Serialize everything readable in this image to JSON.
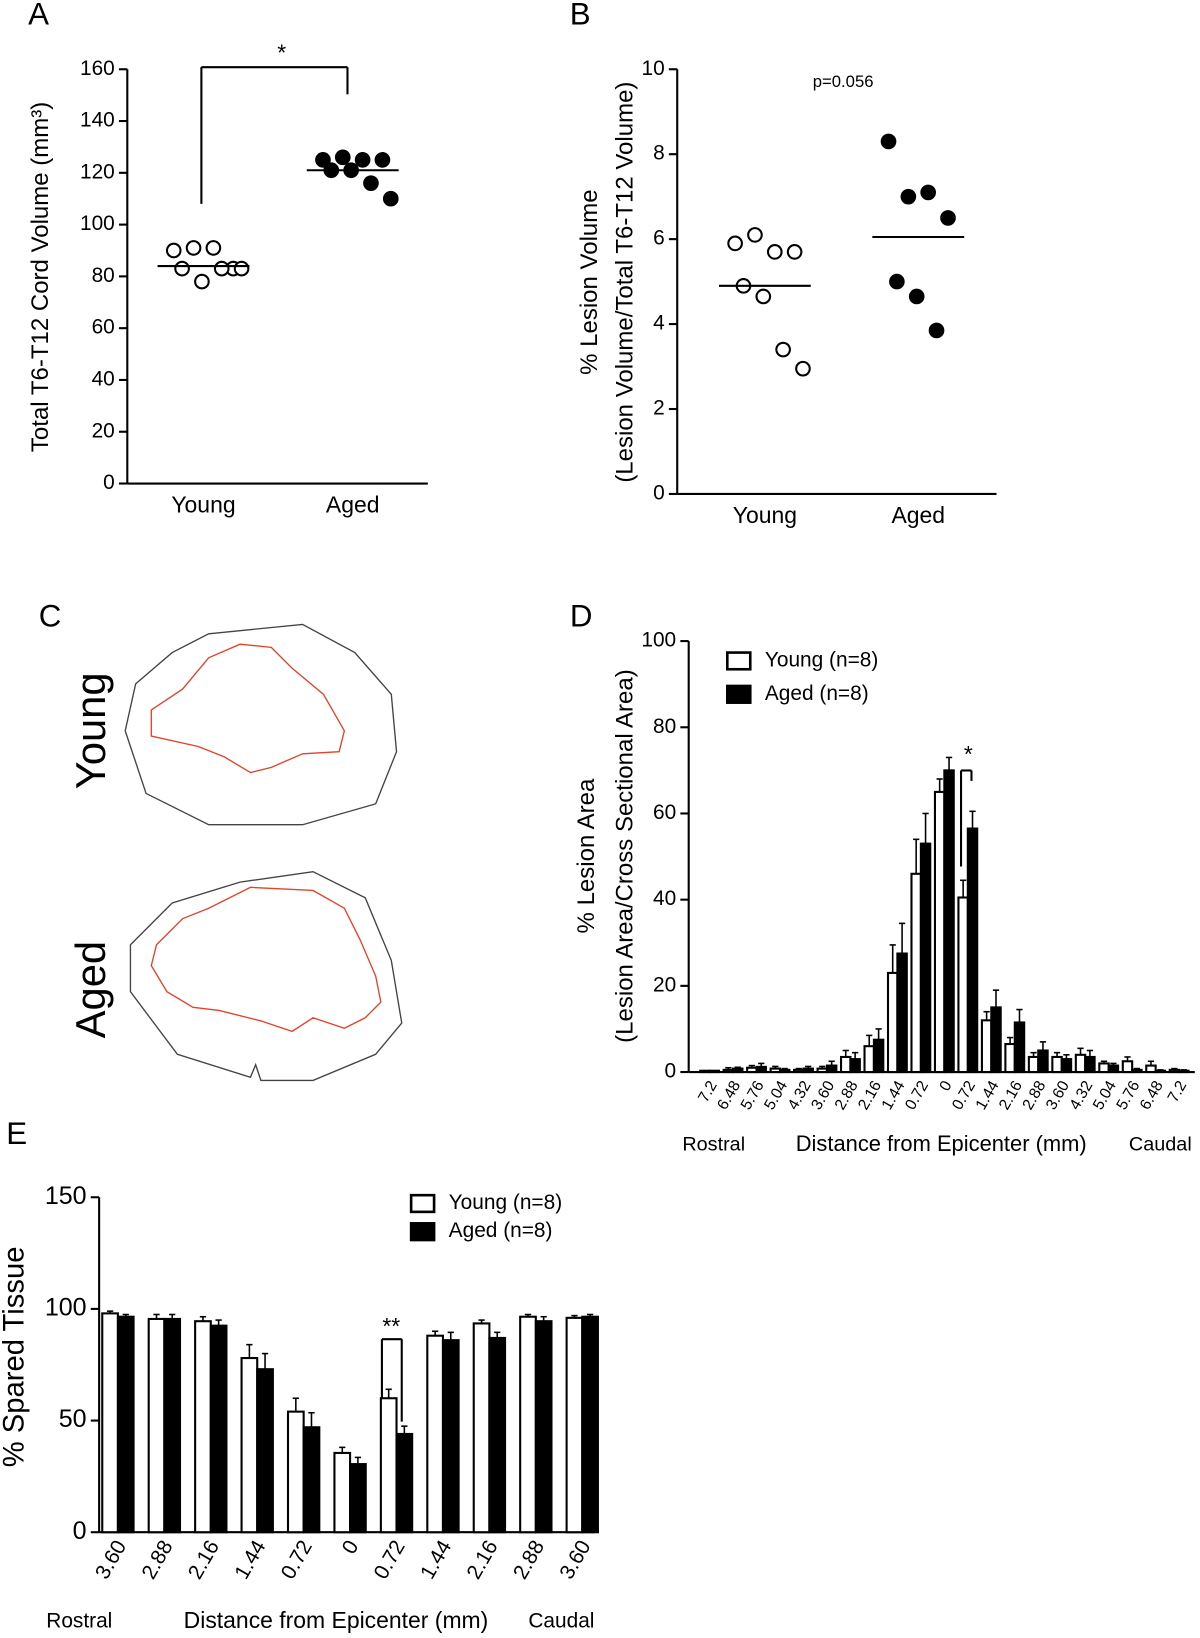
{
  "chart_data": [
    {
      "type": "strip",
      "panel": "A",
      "ylabel": [
        "Total T6-T12 Cord Volume (mm³)"
      ],
      "categories": [
        "Young",
        "Aged"
      ],
      "points": [
        [
          90,
          91,
          91,
          83,
          83,
          78,
          83,
          83
        ],
        [
          125,
          126,
          125,
          125,
          121,
          121,
          116,
          110
        ]
      ],
      "markers": [
        "open",
        "filled"
      ],
      "means": [
        84,
        121
      ],
      "ylim": [
        0,
        160
      ],
      "yticks": [
        0,
        20,
        40,
        60,
        80,
        100,
        120,
        140,
        160
      ],
      "annotation": "*"
    },
    {
      "type": "strip",
      "panel": "B",
      "ylabel": [
        "% Lesion Volume",
        "(Lesion Volume/Total T6-T12 Volume)"
      ],
      "categories": [
        "Young",
        "Aged"
      ],
      "points": [
        [
          5.9,
          6.1,
          5.7,
          5.7,
          4.9,
          4.65,
          3.4,
          2.95
        ],
        [
          8.3,
          7.0,
          7.1,
          6.5,
          5.0,
          4.65,
          3.85
        ]
      ],
      "markers": [
        "open",
        "filled"
      ],
      "means": [
        4.9,
        6.05
      ],
      "ylim": [
        0,
        10
      ],
      "yticks": [
        0,
        2,
        4,
        6,
        8,
        10
      ],
      "annotation": "p=0.056"
    },
    {
      "type": "image",
      "panel": "C",
      "labels": [
        "Young",
        "Aged"
      ]
    },
    {
      "type": "bar",
      "panel": "D",
      "ylabel": [
        "% Lesion Area",
        "(Lesion Area/Cross Sectional Area)"
      ],
      "categories": [
        "7.2",
        "6.48",
        "5.76",
        "5.04",
        "4.32",
        "3.60",
        "2.88",
        "2.16",
        "1.44",
        "0.72",
        "0",
        "0.72",
        "1.44",
        "2.16",
        "2.88",
        "3.60",
        "4.32",
        "5.04",
        "5.76",
        "6.48",
        "7.2"
      ],
      "series": [
        {
          "name": "Young (n=8)",
          "color": "#ffffff",
          "values": [
            0.3,
            0.5,
            1.0,
            0.8,
            0.5,
            0.8,
            3.5,
            6,
            23,
            46,
            65,
            40.5,
            12,
            6.5,
            3.5,
            3.5,
            4,
            2,
            2.5,
            1.5,
            0.5
          ],
          "errors": [
            0,
            0.5,
            0.5,
            0.5,
            0.3,
            0.5,
            1.5,
            2.5,
            6.5,
            8,
            3,
            4,
            2,
            1.5,
            1,
            1,
            1.5,
            0.5,
            1,
            1,
            0.3
          ]
        },
        {
          "name": "Aged (n=8)",
          "color": "#000000",
          "values": [
            0.3,
            0.8,
            1.2,
            0.5,
            0.8,
            1.5,
            3,
            7.5,
            27.5,
            53,
            70,
            56.5,
            15,
            11.5,
            5,
            3,
            3.5,
            1.5,
            0.5,
            0.3,
            0.3
          ],
          "errors": [
            0,
            0.3,
            0.8,
            0.3,
            0.5,
            1,
            1.5,
            2.5,
            7,
            7,
            3,
            4,
            4,
            3,
            2,
            1,
            1.5,
            0.5,
            0.3,
            0.2,
            0.2
          ]
        }
      ],
      "ylim": [
        0,
        100
      ],
      "yticks": [
        0,
        20,
        40,
        60,
        80,
        100
      ],
      "xlabel": "Distance from Epicenter (mm)",
      "xlabel_left": "Rostral",
      "xlabel_right": "Caudal",
      "annotation": "*"
    },
    {
      "type": "bar",
      "panel": "E",
      "ylabel": [
        "% Spared Tissue"
      ],
      "categories": [
        "3.60",
        "2.88",
        "2.16",
        "1.44",
        "0.72",
        "0",
        "0.72",
        "1.44",
        "2.16",
        "2.88",
        "3.60"
      ],
      "series": [
        {
          "name": "Young (n=8)",
          "color": "#ffffff",
          "values": [
            98,
            95.5,
            94.5,
            78,
            54,
            35.5,
            60,
            88,
            93.5,
            96.5,
            96
          ],
          "errors": [
            1,
            2,
            2,
            6,
            6,
            2.5,
            4,
            2,
            1.5,
            1,
            1
          ]
        },
        {
          "name": "Aged (n=8)",
          "color": "#000000",
          "values": [
            96.5,
            95.5,
            92.5,
            73,
            47,
            30.5,
            44,
            86,
            87,
            94.5,
            96.5
          ],
          "errors": [
            1,
            2,
            2.5,
            7,
            6.5,
            3,
            3.5,
            3.5,
            2.5,
            2,
            1
          ]
        }
      ],
      "ylim": [
        0,
        150
      ],
      "yticks": [
        0,
        50,
        100,
        150
      ],
      "xlabel": "Distance from Epicenter (mm)",
      "xlabel_left": "Rostral",
      "xlabel_right": "Caudal",
      "annotation": "**"
    }
  ]
}
